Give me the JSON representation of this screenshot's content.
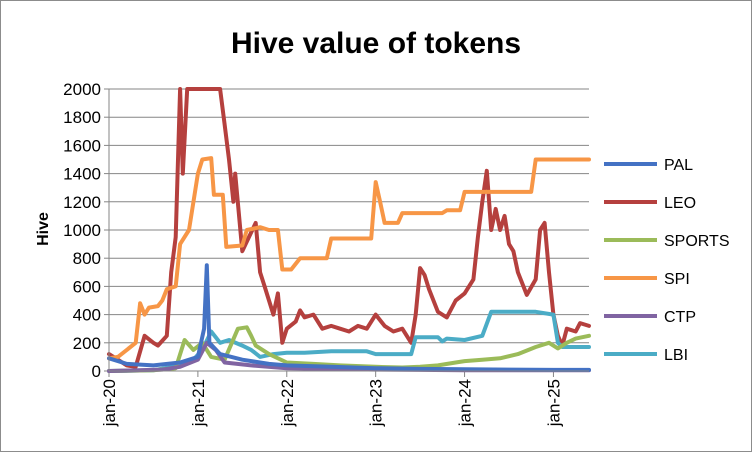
{
  "chart_data": {
    "type": "line",
    "title": "Hive value of tokens",
    "xlabel": "",
    "ylabel": "Hive",
    "ylim": [
      0,
      2000
    ],
    "yticks": [
      0,
      200,
      400,
      600,
      800,
      1000,
      1200,
      1400,
      1600,
      1800,
      2000
    ],
    "xlim": [
      2020.0,
      2025.4
    ],
    "xticks": [
      {
        "label": "jan-20",
        "x": 2020.0
      },
      {
        "label": "jan-21",
        "x": 2021.0
      },
      {
        "label": "jan-22",
        "x": 2022.0
      },
      {
        "label": "jan-23",
        "x": 2023.0
      },
      {
        "label": "jan-24",
        "x": 2024.0
      },
      {
        "label": "jan-25",
        "x": 2025.0
      }
    ],
    "grid": "horizontal",
    "legend_position": "right",
    "series": [
      {
        "name": "PAL",
        "color": "#4472c4",
        "points": [
          [
            2020.0,
            90
          ],
          [
            2020.2,
            50
          ],
          [
            2020.5,
            40
          ],
          [
            2020.8,
            60
          ],
          [
            2021.0,
            100
          ],
          [
            2021.07,
            300
          ],
          [
            2021.1,
            750
          ],
          [
            2021.13,
            200
          ],
          [
            2021.25,
            120
          ],
          [
            2021.5,
            80
          ],
          [
            2021.8,
            50
          ],
          [
            2022.0,
            40
          ],
          [
            2022.5,
            30
          ],
          [
            2023.0,
            20
          ],
          [
            2023.5,
            15
          ],
          [
            2024.0,
            12
          ],
          [
            2024.5,
            10
          ],
          [
            2025.0,
            8
          ],
          [
            2025.4,
            8
          ]
        ]
      },
      {
        "name": "LEO",
        "color": "#b5403e",
        "points": [
          [
            2020.0,
            120
          ],
          [
            2020.1,
            80
          ],
          [
            2020.2,
            40
          ],
          [
            2020.3,
            30
          ],
          [
            2020.4,
            250
          ],
          [
            2020.5,
            200
          ],
          [
            2020.55,
            180
          ],
          [
            2020.65,
            250
          ],
          [
            2020.7,
            700
          ],
          [
            2020.75,
            950
          ],
          [
            2020.8,
            2000
          ],
          [
            2020.83,
            1400
          ],
          [
            2020.88,
            2000
          ],
          [
            2021.25,
            2000
          ],
          [
            2021.3,
            1750
          ],
          [
            2021.35,
            1500
          ],
          [
            2021.4,
            1200
          ],
          [
            2021.42,
            1400
          ],
          [
            2021.5,
            850
          ],
          [
            2021.65,
            1050
          ],
          [
            2021.7,
            700
          ],
          [
            2021.75,
            600
          ],
          [
            2021.8,
            500
          ],
          [
            2021.85,
            400
          ],
          [
            2021.9,
            550
          ],
          [
            2021.95,
            200
          ],
          [
            2022.0,
            300
          ],
          [
            2022.1,
            350
          ],
          [
            2022.15,
            430
          ],
          [
            2022.2,
            380
          ],
          [
            2022.3,
            400
          ],
          [
            2022.4,
            300
          ],
          [
            2022.5,
            320
          ],
          [
            2022.6,
            300
          ],
          [
            2022.7,
            280
          ],
          [
            2022.8,
            320
          ],
          [
            2022.9,
            300
          ],
          [
            2023.0,
            400
          ],
          [
            2023.1,
            320
          ],
          [
            2023.2,
            280
          ],
          [
            2023.3,
            300
          ],
          [
            2023.4,
            200
          ],
          [
            2023.45,
            400
          ],
          [
            2023.5,
            730
          ],
          [
            2023.55,
            680
          ],
          [
            2023.6,
            580
          ],
          [
            2023.7,
            420
          ],
          [
            2023.8,
            380
          ],
          [
            2023.9,
            500
          ],
          [
            2024.0,
            550
          ],
          [
            2024.1,
            650
          ],
          [
            2024.15,
            950
          ],
          [
            2024.2,
            1200
          ],
          [
            2024.25,
            1420
          ],
          [
            2024.3,
            1000
          ],
          [
            2024.35,
            1150
          ],
          [
            2024.4,
            1000
          ],
          [
            2024.45,
            1100
          ],
          [
            2024.5,
            900
          ],
          [
            2024.55,
            850
          ],
          [
            2024.6,
            700
          ],
          [
            2024.7,
            540
          ],
          [
            2024.8,
            650
          ],
          [
            2024.85,
            1000
          ],
          [
            2024.9,
            1050
          ],
          [
            2024.95,
            700
          ],
          [
            2025.0,
            400
          ],
          [
            2025.05,
            250
          ],
          [
            2025.1,
            180
          ],
          [
            2025.15,
            300
          ],
          [
            2025.25,
            280
          ],
          [
            2025.3,
            340
          ],
          [
            2025.4,
            320
          ]
        ]
      },
      {
        "name": "SPORTS",
        "color": "#9bbb59",
        "points": [
          [
            2020.0,
            0
          ],
          [
            2020.5,
            5
          ],
          [
            2020.75,
            20
          ],
          [
            2020.85,
            220
          ],
          [
            2020.95,
            150
          ],
          [
            2021.05,
            200
          ],
          [
            2021.15,
            100
          ],
          [
            2021.3,
            80
          ],
          [
            2021.45,
            300
          ],
          [
            2021.55,
            310
          ],
          [
            2021.6,
            250
          ],
          [
            2021.65,
            180
          ],
          [
            2021.8,
            120
          ],
          [
            2022.0,
            60
          ],
          [
            2022.3,
            50
          ],
          [
            2022.6,
            40
          ],
          [
            2023.0,
            30
          ],
          [
            2023.3,
            25
          ],
          [
            2023.5,
            30
          ],
          [
            2023.7,
            40
          ],
          [
            2023.9,
            60
          ],
          [
            2024.0,
            70
          ],
          [
            2024.2,
            80
          ],
          [
            2024.4,
            90
          ],
          [
            2024.6,
            120
          ],
          [
            2024.8,
            170
          ],
          [
            2024.95,
            200
          ],
          [
            2025.05,
            160
          ],
          [
            2025.15,
            200
          ],
          [
            2025.25,
            230
          ],
          [
            2025.4,
            250
          ]
        ]
      },
      {
        "name": "SPI",
        "color": "#f79646",
        "points": [
          [
            2020.0,
            90
          ],
          [
            2020.1,
            100
          ],
          [
            2020.2,
            150
          ],
          [
            2020.3,
            200
          ],
          [
            2020.35,
            480
          ],
          [
            2020.4,
            400
          ],
          [
            2020.45,
            450
          ],
          [
            2020.55,
            460
          ],
          [
            2020.6,
            500
          ],
          [
            2020.65,
            580
          ],
          [
            2020.75,
            600
          ],
          [
            2020.8,
            900
          ],
          [
            2020.9,
            1000
          ],
          [
            2021.0,
            1400
          ],
          [
            2021.05,
            1500
          ],
          [
            2021.15,
            1510
          ],
          [
            2021.18,
            1250
          ],
          [
            2021.28,
            1250
          ],
          [
            2021.32,
            880
          ],
          [
            2021.5,
            890
          ],
          [
            2021.55,
            1000
          ],
          [
            2021.7,
            1020
          ],
          [
            2021.8,
            1000
          ],
          [
            2021.9,
            1000
          ],
          [
            2021.95,
            720
          ],
          [
            2022.05,
            720
          ],
          [
            2022.15,
            800
          ],
          [
            2022.45,
            800
          ],
          [
            2022.5,
            940
          ],
          [
            2022.95,
            940
          ],
          [
            2023.0,
            1340
          ],
          [
            2023.05,
            1200
          ],
          [
            2023.1,
            1050
          ],
          [
            2023.25,
            1050
          ],
          [
            2023.3,
            1120
          ],
          [
            2023.75,
            1120
          ],
          [
            2023.8,
            1140
          ],
          [
            2023.95,
            1140
          ],
          [
            2024.0,
            1270
          ],
          [
            2024.75,
            1270
          ],
          [
            2024.8,
            1500
          ],
          [
            2025.4,
            1500
          ]
        ]
      },
      {
        "name": "CTP",
        "color": "#8064a2",
        "points": [
          [
            2020.0,
            0
          ],
          [
            2020.6,
            10
          ],
          [
            2020.8,
            30
          ],
          [
            2021.0,
            80
          ],
          [
            2021.1,
            200
          ],
          [
            2021.2,
            150
          ],
          [
            2021.3,
            60
          ],
          [
            2021.6,
            40
          ],
          [
            2022.0,
            20
          ],
          [
            2022.5,
            15
          ],
          [
            2023.0,
            10
          ],
          [
            2023.5,
            8
          ],
          [
            2024.0,
            5
          ],
          [
            2024.5,
            5
          ],
          [
            2025.0,
            5
          ],
          [
            2025.4,
            5
          ]
        ]
      },
      {
        "name": "LBI",
        "color": "#4bacc6",
        "points": [
          [
            2020.0,
            0
          ],
          [
            2020.5,
            5
          ],
          [
            2020.8,
            40
          ],
          [
            2020.95,
            80
          ],
          [
            2021.05,
            150
          ],
          [
            2021.15,
            280
          ],
          [
            2021.25,
            200
          ],
          [
            2021.35,
            220
          ],
          [
            2021.5,
            180
          ],
          [
            2021.6,
            150
          ],
          [
            2021.7,
            100
          ],
          [
            2021.85,
            120
          ],
          [
            2022.0,
            130
          ],
          [
            2022.2,
            130
          ],
          [
            2022.5,
            140
          ],
          [
            2022.9,
            140
          ],
          [
            2023.0,
            120
          ],
          [
            2023.4,
            120
          ],
          [
            2023.45,
            240
          ],
          [
            2023.7,
            240
          ],
          [
            2023.75,
            210
          ],
          [
            2023.8,
            230
          ],
          [
            2024.0,
            220
          ],
          [
            2024.2,
            250
          ],
          [
            2024.3,
            420
          ],
          [
            2024.8,
            420
          ],
          [
            2025.0,
            400
          ],
          [
            2025.05,
            200
          ],
          [
            2025.1,
            170
          ],
          [
            2025.4,
            170
          ]
        ]
      }
    ]
  }
}
